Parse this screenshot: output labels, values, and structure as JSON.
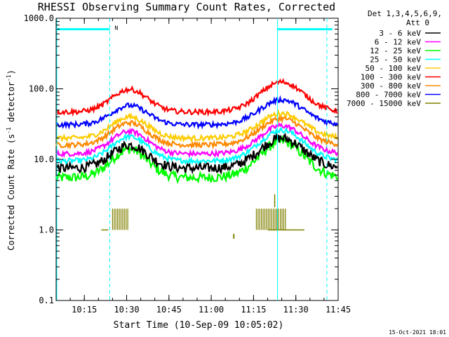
{
  "chart_data": {
    "type": "line",
    "title": "RHESSI Observing Summary Count Rates, Corrected",
    "xlabel": "Start Time (10-Sep-09 10:05:02)",
    "ylabel_main": "Corrected Count Rate (s",
    "ylabel_sup1": "-1",
    "ylabel_mid": " detector",
    "ylabel_sup2": "-1",
    "ylabel_end": ")",
    "yscale": "log",
    "ylim": [
      0.1,
      1000
    ],
    "xlim_minutes": [
      0,
      100
    ],
    "x_tick_minutes": [
      10,
      25,
      40,
      55,
      70,
      85,
      100
    ],
    "x_tick_labels": [
      "10:15",
      "10:30",
      "10:45",
      "11:00",
      "11:15",
      "11:30",
      "11:45"
    ],
    "y_tick_values": [
      0.1,
      1,
      10,
      100,
      1000
    ],
    "y_tick_labels": [
      "0.1",
      "1.0",
      "10.0",
      "100.0",
      "1000.0"
    ],
    "grid": false,
    "legend_position": "right",
    "legend_header": [
      "Det 1,3,4,5,6,9,",
      "Att 0"
    ],
    "series": [
      {
        "name": "3 - 6 keV",
        "color": "#000000",
        "base": 7.5,
        "peak1": 16,
        "peak2": 20
      },
      {
        "name": "6 - 12 keV",
        "color": "#ff00ff",
        "base": 12,
        "peak1": 25,
        "peak2": 30
      },
      {
        "name": "12 - 25 keV",
        "color": "#00ff00",
        "base": 5.5,
        "peak1": 14,
        "peak2": 18
      },
      {
        "name": "25 - 50 keV",
        "color": "#00ffff",
        "base": 9.5,
        "peak1": 21,
        "peak2": 26
      },
      {
        "name": "50 - 100 keV",
        "color": "#ffcc00",
        "base": 20,
        "peak1": 40,
        "peak2": 45
      },
      {
        "name": "100 - 300 keV",
        "color": "#ff0000",
        "base": 47,
        "peak1": 98,
        "peak2": 125
      },
      {
        "name": "300 - 800 keV",
        "color": "#ff8800",
        "base": 16,
        "peak1": 33,
        "peak2": 38
      },
      {
        "name": "800 - 7000 keV",
        "color": "#0000ff",
        "base": 31,
        "peak1": 58,
        "peak2": 70
      },
      {
        "name": "7000 - 15000 keV",
        "color": "#808000",
        "base": 1.0,
        "peak1": 2,
        "peak2": 2
      }
    ],
    "peak_minutes": [
      26,
      80
    ],
    "markers": {
      "color": "#00ffff",
      "solid_lines_minutes": [
        0,
        78.5
      ],
      "dashed_lines_minutes": [
        19,
        96
      ],
      "bars_minutes": [
        [
          0,
          19
        ],
        [
          78.5,
          98
        ]
      ],
      "bar_level": 700,
      "bar_label": "N"
    },
    "footer_date": "15-Oct-2021 18:01"
  }
}
